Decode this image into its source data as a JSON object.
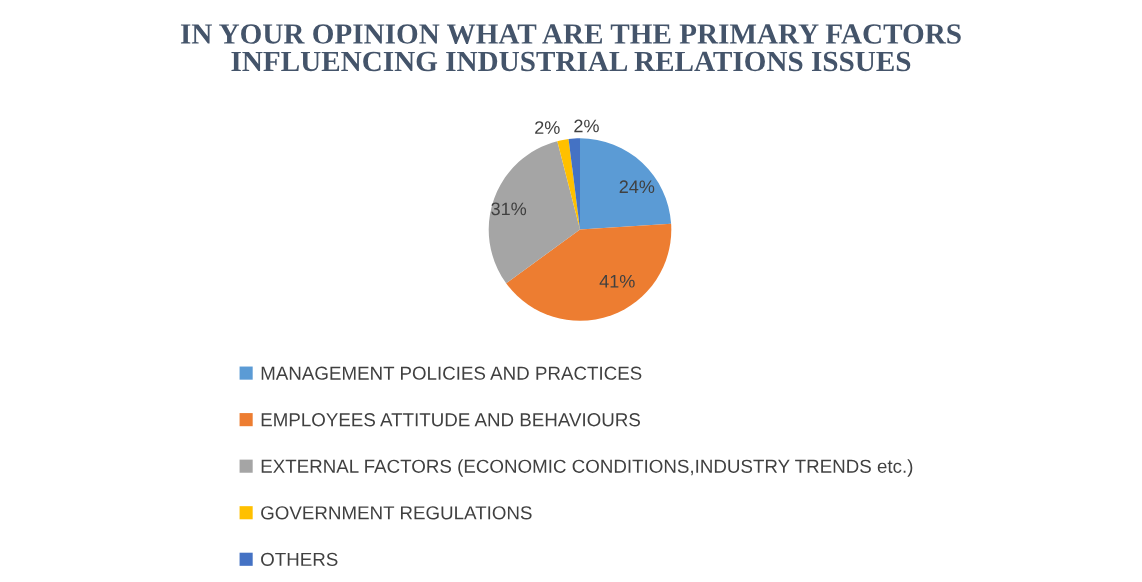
{
  "chart_data": {
    "type": "pie",
    "title": "IN YOUR OPINION WHAT ARE THE PRIMARY FACTORS\nINFLUENCING INDUSTRIAL RELATIONS ISSUES",
    "categories": [
      "MANAGEMENT POLICIES AND PRACTICES",
      "EMPLOYEES ATTITUDE AND BEHAVIOURS",
      "EXTERNAL FACTORS (ECONOMIC CONDITIONS,INDUSTRY TRENDS etc.)",
      "GOVERNMENT REGULATIONS",
      "OTHERS"
    ],
    "values": [
      24,
      41,
      31,
      2,
      2
    ],
    "value_labels": [
      "24%",
      "41%",
      "31%",
      "2%",
      "2%"
    ],
    "colors": [
      "#5b9bd5",
      "#ed7d31",
      "#a5a5a5",
      "#ffc000",
      "#4472c4"
    ],
    "legend": "bottom"
  }
}
